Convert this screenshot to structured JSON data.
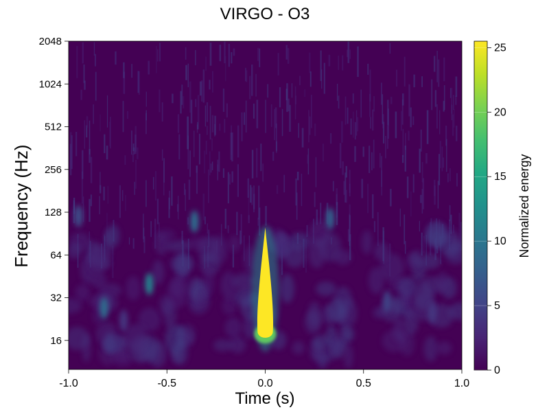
{
  "chart_data": {
    "type": "heatmap",
    "title": "VIRGO - O3",
    "xlabel": "Time (s)",
    "ylabel": "Frequency (Hz)",
    "colorbar_label": "Normalized energy",
    "colormap": "viridis",
    "xlim": [
      -1.0,
      1.0
    ],
    "ylim": [
      10,
      2048
    ],
    "yscale": "log2",
    "x_ticks": [
      -1.0,
      -0.5,
      0.0,
      0.5,
      1.0
    ],
    "x_tick_labels": [
      "-1.0",
      "-0.5",
      "0.0",
      "0.5",
      "1.0"
    ],
    "y_ticks": [
      16,
      32,
      64,
      128,
      256,
      512,
      1024,
      2048
    ],
    "y_tick_labels": [
      "16",
      "32",
      "64",
      "128",
      "256",
      "512",
      "1024",
      "2048"
    ],
    "colorbar_range": [
      0,
      25.5
    ],
    "colorbar_ticks": [
      0,
      5,
      10,
      15,
      20,
      25
    ],
    "colorbar_tick_labels": [
      "0",
      "5",
      "10",
      "15",
      "20",
      "25"
    ],
    "signal": {
      "description_label": "",
      "time": 0.0,
      "freq_low": 17,
      "freq_high": 100,
      "peak_energy": 25.5
    },
    "noise_blobs": [
      {
        "t": -0.82,
        "f": 27,
        "e": 9
      },
      {
        "t": -0.59,
        "f": 40,
        "e": 11
      },
      {
        "t": -0.36,
        "f": 110,
        "e": 9
      },
      {
        "t": 0.33,
        "f": 115,
        "e": 8
      },
      {
        "t": -0.95,
        "f": 120,
        "e": 6
      },
      {
        "t": 0.62,
        "f": 30,
        "e": 5
      },
      {
        "t": -0.72,
        "f": 22,
        "e": 4
      },
      {
        "t": 0.85,
        "f": 25,
        "e": 4
      }
    ]
  }
}
